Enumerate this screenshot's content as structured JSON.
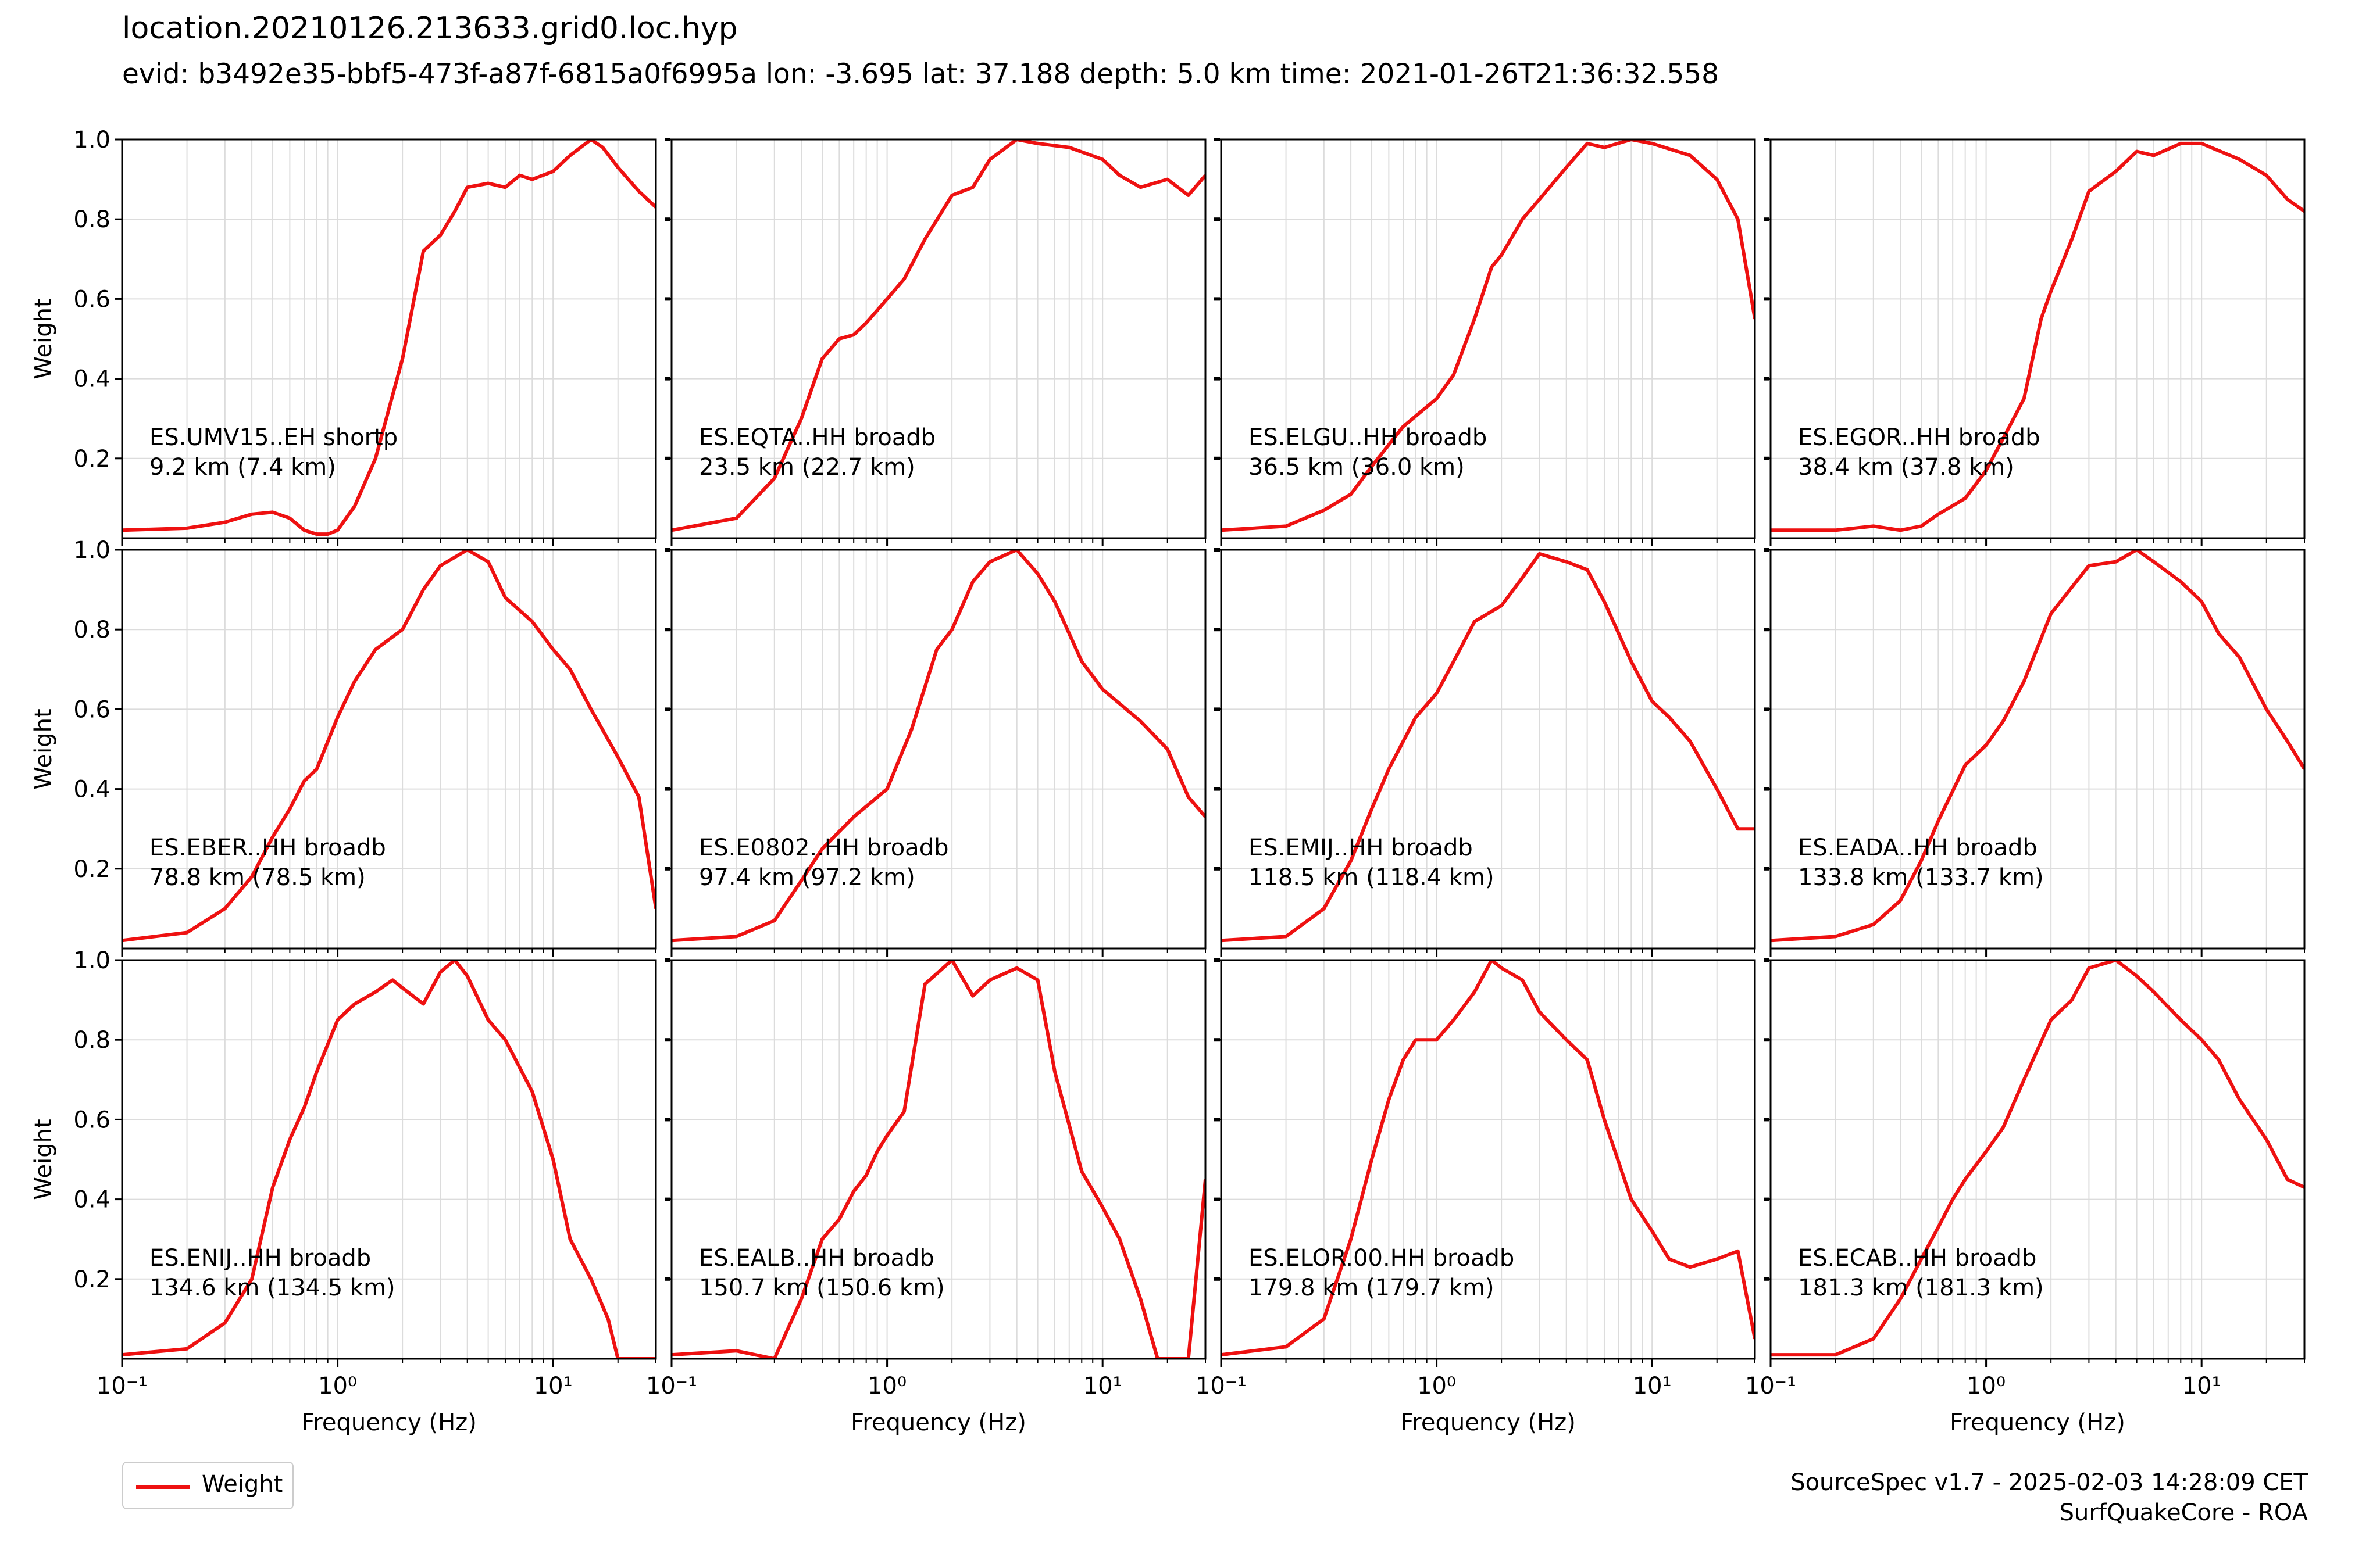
{
  "figure": {
    "title": "location.20210126.213633.grid0.loc.hyp",
    "subtitle": "evid: b3492e35-bbf5-473f-a87f-6815a0f6995a lon: -3.695 lat: 37.188 depth: 5.0 km time: 2021-01-26T21:36:32.558",
    "legend_label": "Weight",
    "footer_line1": "SourceSpec v1.7 - 2025-02-03 14:28:09 CET",
    "footer_line2": "SurfQuakeCore - ROA",
    "line_color": "#ee1111",
    "grid_color": "#dcdcdc"
  },
  "chart_data": {
    "type": "line",
    "layout": {
      "rows": 3,
      "cols": 4
    },
    "xlabel": "Frequency (Hz)",
    "ylabel": "Weight",
    "xscale": "log",
    "xlim": [
      0.1,
      30
    ],
    "ylim": [
      0,
      1.0
    ],
    "xticks": [
      0.1,
      1,
      10
    ],
    "xtick_labels": [
      "10⁻¹",
      "10⁰",
      "10¹"
    ],
    "yticks": [
      0.2,
      0.4,
      0.6,
      0.8,
      1.0
    ],
    "ytick_labels": [
      "0.2",
      "0.4",
      "0.6",
      "0.8",
      "1.0"
    ],
    "grid": true,
    "legend": {
      "entries": [
        "Weight"
      ],
      "placement": "bottom-left"
    },
    "panels": [
      {
        "station": "ES.UMV15..EH shortp",
        "distance": "9.2 km (7.4 km)",
        "x": [
          0.1,
          0.2,
          0.3,
          0.4,
          0.5,
          0.6,
          0.7,
          0.8,
          0.9,
          1.0,
          1.2,
          1.5,
          2,
          2.5,
          3,
          3.5,
          4,
          5,
          6,
          7,
          8,
          10,
          12,
          15,
          17,
          20,
          25,
          30
        ],
        "y": [
          0.02,
          0.025,
          0.04,
          0.06,
          0.065,
          0.05,
          0.02,
          0.01,
          0.01,
          0.02,
          0.08,
          0.2,
          0.45,
          0.72,
          0.76,
          0.82,
          0.88,
          0.89,
          0.88,
          0.91,
          0.9,
          0.92,
          0.96,
          1.0,
          0.98,
          0.93,
          0.87,
          0.83
        ]
      },
      {
        "station": "ES.EQTA..HH broadb",
        "distance": "23.5 km (22.7 km)",
        "x": [
          0.1,
          0.2,
          0.3,
          0.4,
          0.5,
          0.6,
          0.7,
          0.8,
          1.0,
          1.2,
          1.5,
          2,
          2.5,
          3,
          4,
          5,
          7,
          10,
          12,
          15,
          20,
          25,
          30
        ],
        "y": [
          0.02,
          0.05,
          0.15,
          0.3,
          0.45,
          0.5,
          0.51,
          0.54,
          0.6,
          0.65,
          0.75,
          0.86,
          0.88,
          0.95,
          1.0,
          0.99,
          0.98,
          0.95,
          0.91,
          0.88,
          0.9,
          0.86,
          0.91
        ]
      },
      {
        "station": "ES.ELGU..HH broadb",
        "distance": "36.5 km (36.0 km)",
        "x": [
          0.1,
          0.2,
          0.3,
          0.4,
          0.5,
          0.7,
          1.0,
          1.2,
          1.5,
          1.8,
          2,
          2.5,
          3,
          4,
          5,
          6,
          8,
          10,
          15,
          20,
          25,
          30
        ],
        "y": [
          0.02,
          0.03,
          0.07,
          0.11,
          0.18,
          0.28,
          0.35,
          0.41,
          0.55,
          0.68,
          0.71,
          0.8,
          0.85,
          0.93,
          0.99,
          0.98,
          1.0,
          0.99,
          0.96,
          0.9,
          0.8,
          0.55
        ]
      },
      {
        "station": "ES.EGOR..HH broadb",
        "distance": "38.4 km (37.8 km)",
        "x": [
          0.1,
          0.2,
          0.3,
          0.4,
          0.5,
          0.6,
          0.8,
          1.0,
          1.2,
          1.5,
          1.8,
          2,
          2.5,
          3,
          4,
          5,
          6,
          8,
          10,
          15,
          20,
          25,
          30
        ],
        "y": [
          0.02,
          0.02,
          0.03,
          0.02,
          0.03,
          0.06,
          0.1,
          0.17,
          0.25,
          0.35,
          0.55,
          0.62,
          0.75,
          0.87,
          0.92,
          0.97,
          0.96,
          0.99,
          0.99,
          0.95,
          0.91,
          0.85,
          0.82
        ]
      },
      {
        "station": "ES.EBER..HH broadb",
        "distance": "78.8 km (78.5 km)",
        "x": [
          0.1,
          0.2,
          0.3,
          0.4,
          0.5,
          0.6,
          0.7,
          0.8,
          1.0,
          1.2,
          1.5,
          2,
          2.5,
          3,
          4,
          5,
          6,
          8,
          10,
          12,
          15,
          20,
          25,
          30
        ],
        "y": [
          0.02,
          0.04,
          0.1,
          0.18,
          0.28,
          0.35,
          0.42,
          0.45,
          0.58,
          0.67,
          0.75,
          0.8,
          0.9,
          0.96,
          1.0,
          0.97,
          0.88,
          0.82,
          0.75,
          0.7,
          0.6,
          0.48,
          0.38,
          0.1
        ]
      },
      {
        "station": "ES.E0802..HH broadb",
        "distance": "97.4 km (97.2 km)",
        "x": [
          0.1,
          0.2,
          0.3,
          0.4,
          0.5,
          0.7,
          1.0,
          1.3,
          1.7,
          2,
          2.5,
          3,
          4,
          5,
          6,
          8,
          10,
          15,
          20,
          25,
          30
        ],
        "y": [
          0.02,
          0.03,
          0.07,
          0.17,
          0.25,
          0.33,
          0.4,
          0.55,
          0.75,
          0.8,
          0.92,
          0.97,
          1.0,
          0.94,
          0.87,
          0.72,
          0.65,
          0.57,
          0.5,
          0.38,
          0.33
        ]
      },
      {
        "station": "ES.EMIJ..HH broadb",
        "distance": "118.5 km (118.4 km)",
        "x": [
          0.1,
          0.2,
          0.3,
          0.4,
          0.5,
          0.6,
          0.8,
          1.0,
          1.2,
          1.5,
          2,
          2.5,
          3,
          4,
          5,
          6,
          8,
          10,
          12,
          15,
          20,
          25,
          30
        ],
        "y": [
          0.02,
          0.03,
          0.1,
          0.22,
          0.35,
          0.45,
          0.58,
          0.64,
          0.72,
          0.82,
          0.86,
          0.93,
          0.99,
          0.97,
          0.95,
          0.87,
          0.72,
          0.62,
          0.58,
          0.52,
          0.4,
          0.3,
          0.3
        ]
      },
      {
        "station": "ES.EADA..HH broadb",
        "distance": "133.8 km (133.7 km)",
        "x": [
          0.1,
          0.2,
          0.3,
          0.4,
          0.5,
          0.6,
          0.8,
          1.0,
          1.2,
          1.5,
          2,
          3,
          4,
          5,
          6,
          8,
          10,
          12,
          15,
          20,
          25,
          30
        ],
        "y": [
          0.02,
          0.03,
          0.06,
          0.12,
          0.22,
          0.32,
          0.46,
          0.51,
          0.57,
          0.67,
          0.84,
          0.96,
          0.97,
          1.0,
          0.97,
          0.92,
          0.87,
          0.79,
          0.73,
          0.6,
          0.52,
          0.45
        ]
      },
      {
        "station": "ES.ENIJ..HH broadb",
        "distance": "134.6 km (134.5 km)",
        "x": [
          0.1,
          0.2,
          0.3,
          0.4,
          0.5,
          0.6,
          0.7,
          0.8,
          1.0,
          1.2,
          1.5,
          1.8,
          2,
          2.5,
          3,
          3.5,
          4,
          5,
          6,
          8,
          10,
          12,
          15,
          18,
          20,
          25,
          30
        ],
        "y": [
          0.01,
          0.025,
          0.09,
          0.2,
          0.43,
          0.55,
          0.63,
          0.72,
          0.85,
          0.89,
          0.92,
          0.95,
          0.93,
          0.89,
          0.97,
          1.0,
          0.96,
          0.85,
          0.8,
          0.67,
          0.5,
          0.3,
          0.2,
          0.1,
          0.0,
          0.0,
          0.0
        ]
      },
      {
        "station": "ES.EALB..HH broadb",
        "distance": "150.7 km (150.6 km)",
        "x": [
          0.1,
          0.2,
          0.3,
          0.4,
          0.5,
          0.6,
          0.7,
          0.8,
          0.9,
          1.0,
          1.2,
          1.5,
          2,
          2.5,
          3,
          4,
          5,
          6,
          8,
          10,
          12,
          15,
          18,
          20,
          25,
          30
        ],
        "y": [
          0.01,
          0.02,
          0.0,
          0.15,
          0.3,
          0.35,
          0.42,
          0.46,
          0.52,
          0.56,
          0.62,
          0.94,
          1.0,
          0.91,
          0.95,
          0.98,
          0.95,
          0.72,
          0.47,
          0.38,
          0.3,
          0.15,
          0.0,
          0.0,
          0.0,
          0.45
        ]
      },
      {
        "station": "ES.ELOR.00.HH broadb",
        "distance": "179.8 km (179.7 km)",
        "x": [
          0.1,
          0.2,
          0.3,
          0.4,
          0.5,
          0.6,
          0.7,
          0.8,
          1.0,
          1.2,
          1.5,
          1.8,
          2,
          2.5,
          3,
          4,
          5,
          6,
          8,
          10,
          12,
          15,
          20,
          25,
          30
        ],
        "y": [
          0.01,
          0.03,
          0.1,
          0.3,
          0.5,
          0.65,
          0.75,
          0.8,
          0.8,
          0.85,
          0.92,
          1.0,
          0.98,
          0.95,
          0.87,
          0.8,
          0.75,
          0.6,
          0.4,
          0.32,
          0.25,
          0.23,
          0.25,
          0.27,
          0.05
        ]
      },
      {
        "station": "ES.ECAB..HH broadb",
        "distance": "181.3 km (181.3 km)",
        "x": [
          0.1,
          0.2,
          0.3,
          0.4,
          0.5,
          0.6,
          0.7,
          0.8,
          1.0,
          1.2,
          1.5,
          2,
          2.5,
          3,
          4,
          5,
          6,
          8,
          10,
          12,
          15,
          20,
          25,
          30
        ],
        "y": [
          0.01,
          0.01,
          0.05,
          0.15,
          0.25,
          0.33,
          0.4,
          0.45,
          0.52,
          0.58,
          0.7,
          0.85,
          0.9,
          0.98,
          1.0,
          0.96,
          0.92,
          0.85,
          0.8,
          0.75,
          0.65,
          0.55,
          0.45,
          0.43
        ]
      }
    ]
  }
}
